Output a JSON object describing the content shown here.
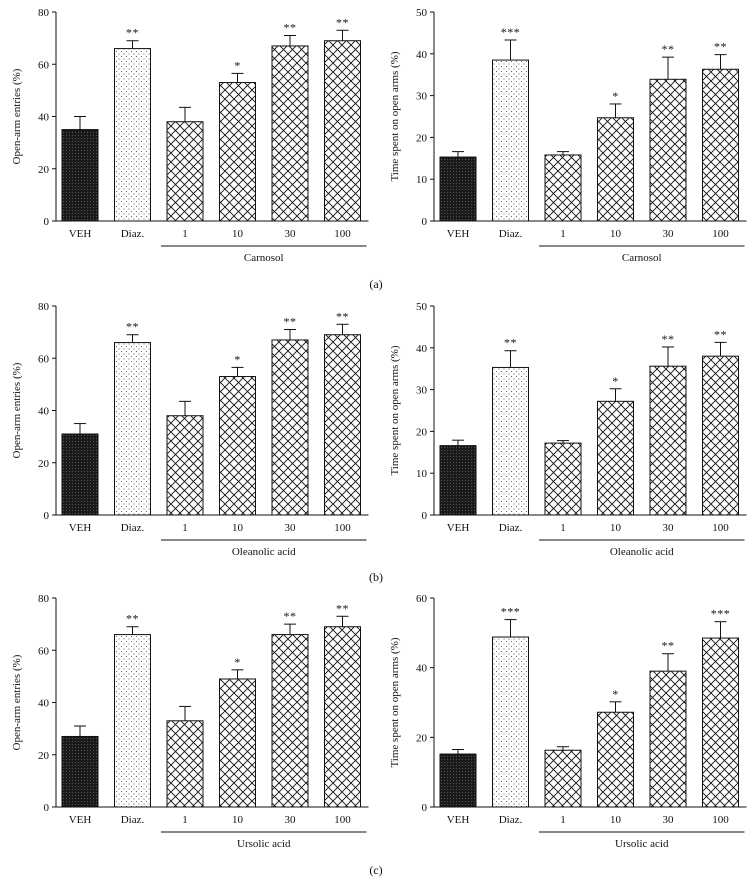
{
  "figure": {
    "panel_labels": [
      "(a)",
      "(b)",
      "(c)"
    ]
  },
  "patterns": {
    "VEH": "dense-dark",
    "Diaz.": "dots",
    "compound": "crosshatch"
  },
  "chart_data": [
    {
      "type": "bar",
      "panel": "(a)",
      "categories": [
        "VEH",
        "Diaz.",
        "1",
        "10",
        "30",
        "100"
      ],
      "values": [
        35,
        66,
        38,
        53,
        67,
        69
      ],
      "errors": [
        5,
        3,
        5.5,
        3.5,
        4,
        4
      ],
      "significance": [
        "",
        "**",
        "",
        "*",
        "**",
        "**"
      ],
      "ylabel": "Open-arm entries (%)",
      "group_label": "Carnosol",
      "ylim": [
        0,
        80
      ],
      "yticks": [
        0,
        20,
        40,
        60,
        80
      ]
    },
    {
      "type": "bar",
      "panel": "(a)",
      "categories": [
        "VEH",
        "Diaz.",
        "1",
        "10",
        "30",
        "100"
      ],
      "values": [
        15.3,
        38.5,
        15.8,
        24.7,
        33.9,
        36.3
      ],
      "errors": [
        1.3,
        4.8,
        0.8,
        3.3,
        5.3,
        3.5
      ],
      "significance": [
        "",
        "***",
        "",
        "*",
        "**",
        "**"
      ],
      "ylabel": "Time spent on open arms (%)",
      "group_label": "Carnosol",
      "ylim": [
        0,
        50
      ],
      "yticks": [
        0,
        10,
        20,
        30,
        40,
        50
      ]
    },
    {
      "type": "bar",
      "panel": "(b)",
      "categories": [
        "VEH",
        "Diaz.",
        "1",
        "10",
        "30",
        "100"
      ],
      "values": [
        31,
        66,
        38,
        53,
        67,
        69
      ],
      "errors": [
        4,
        3,
        5.5,
        3.5,
        4,
        4
      ],
      "significance": [
        "",
        "**",
        "",
        "*",
        "**",
        "**"
      ],
      "ylabel": "Open-arm entries (%)",
      "group_label": "Oleanolic acid",
      "ylim": [
        0,
        80
      ],
      "yticks": [
        0,
        20,
        40,
        60,
        80
      ]
    },
    {
      "type": "bar",
      "panel": "(b)",
      "categories": [
        "VEH",
        "Diaz.",
        "1",
        "10",
        "30",
        "100"
      ],
      "values": [
        16.6,
        35.3,
        17.2,
        27.2,
        35.6,
        38
      ],
      "errors": [
        1.3,
        4,
        0.6,
        3,
        4.6,
        3.3
      ],
      "significance": [
        "",
        "**",
        "",
        "*",
        "**",
        "**"
      ],
      "ylabel": "Time spent on open arms (%)",
      "group_label": "Oleanolic acid",
      "ylim": [
        0,
        50
      ],
      "yticks": [
        0,
        10,
        20,
        30,
        40,
        50
      ]
    },
    {
      "type": "bar",
      "panel": "(c)",
      "categories": [
        "VEH",
        "Diaz.",
        "1",
        "10",
        "30",
        "100"
      ],
      "values": [
        27,
        66,
        33,
        49,
        66,
        69
      ],
      "errors": [
        4,
        3,
        5.5,
        3.5,
        4,
        4
      ],
      "significance": [
        "",
        "**",
        "",
        "*",
        "**",
        "**"
      ],
      "ylabel": "Open-arm entries (%)",
      "group_label": "Ursolic acid",
      "ylim": [
        0,
        80
      ],
      "yticks": [
        0,
        20,
        40,
        60,
        80
      ]
    },
    {
      "type": "bar",
      "panel": "(c)",
      "categories": [
        "VEH",
        "Diaz.",
        "1",
        "10",
        "30",
        "100"
      ],
      "values": [
        15.2,
        48.8,
        16.3,
        27.2,
        39,
        48.5
      ],
      "errors": [
        1.3,
        5,
        1,
        3,
        5,
        4.7
      ],
      "significance": [
        "",
        "***",
        "",
        "*",
        "**",
        "***"
      ],
      "ylabel": "Time spent on open arms (%)",
      "group_label": "Ursolic acid",
      "ylim": [
        0,
        60
      ],
      "yticks": [
        0,
        20,
        40,
        60
      ]
    }
  ]
}
